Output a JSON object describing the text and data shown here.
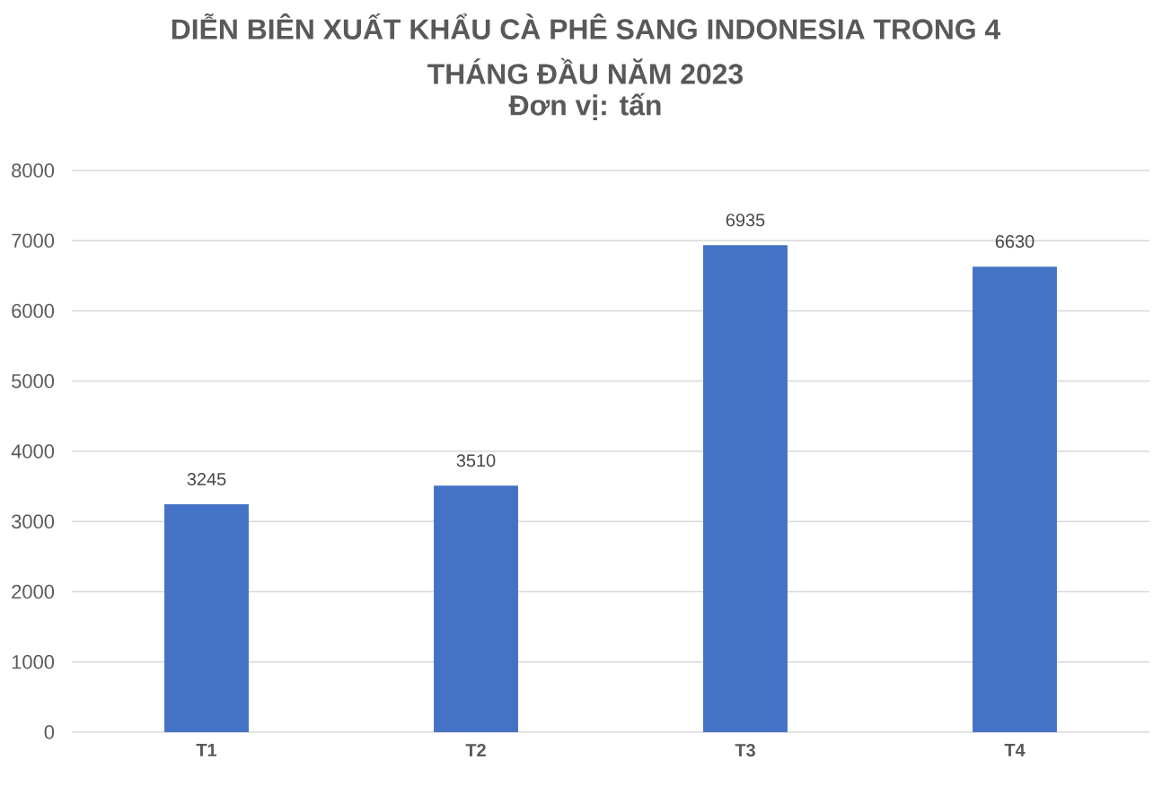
{
  "chart_data": {
    "type": "bar",
    "title": "DIỄN BIÊN XUẤT KHẨU CÀ PHÊ SANG INDONESIA TRONG 4 THÁNG ĐẦU NĂM 2023",
    "subtitle": "Đơn vị: tấn",
    "categories": [
      "T1",
      "T2",
      "T3",
      "T4"
    ],
    "values": [
      3245,
      3510,
      6935,
      6630
    ],
    "color": "#4472c4",
    "ylim": [
      0,
      8000
    ],
    "yticks": [
      0,
      1000,
      2000,
      3000,
      4000,
      5000,
      6000,
      7000,
      8000
    ],
    "grid": "y",
    "data_labels": true
  }
}
